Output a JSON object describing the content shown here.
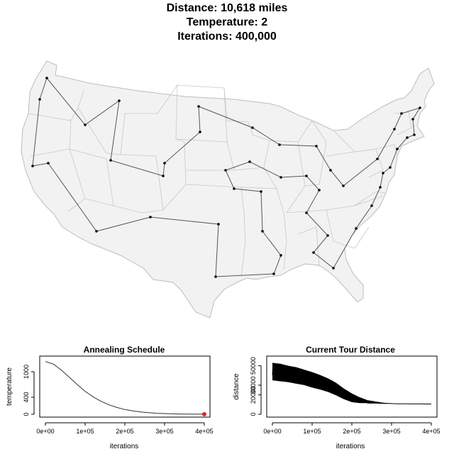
{
  "header": {
    "distance_line": "Distance: 10,618 miles",
    "temperature_line": "Temperature: 2",
    "iterations_line": "Iterations: 400,000"
  },
  "colors": {
    "map_fill": "#f2f2f2",
    "state_border": "#bdbdbd",
    "tour_line": "#555555",
    "city_point": "#000000",
    "current_marker": "#e3261c",
    "curve": "#333333"
  },
  "chart_data": [
    {
      "type": "line",
      "title": "Annealing Schedule",
      "xlabel": "iterations",
      "ylabel": "temperature",
      "x_ticks": [
        "0e+00",
        "1e+05",
        "2e+05",
        "3e+05",
        "4e+05"
      ],
      "y_ticks": [
        "0",
        "400",
        "1000"
      ],
      "xlim": [
        0,
        400000
      ],
      "ylim": [
        0,
        1300
      ],
      "grid": false,
      "series": [
        {
          "x": [
            0,
            20000,
            40000,
            60000,
            80000,
            100000,
            120000,
            140000,
            160000,
            180000,
            200000,
            220000,
            240000,
            260000,
            280000,
            300000,
            320000,
            340000,
            360000,
            380000,
            400000
          ],
          "values": [
            1240,
            1180,
            1040,
            870,
            700,
            540,
            410,
            305,
            222,
            160,
            112,
            78,
            54,
            36,
            24,
            16,
            10,
            6,
            4,
            3,
            2
          ]
        }
      ],
      "current_point": {
        "x": 400000,
        "y": 2
      }
    },
    {
      "type": "line",
      "title": "Current Tour Distance",
      "xlabel": "iterations",
      "ylabel": "distance",
      "x_ticks": [
        "0e+00",
        "1e+05",
        "2e+05",
        "3e+05",
        "4e+05"
      ],
      "y_ticks": [
        "0",
        "20000",
        "30000",
        "50000"
      ],
      "xlim": [
        0,
        400000
      ],
      "ylim": [
        0,
        57000
      ],
      "grid": false,
      "series": [
        {
          "x": [
            0,
            20000,
            40000,
            60000,
            80000,
            100000,
            120000,
            140000,
            160000,
            180000,
            200000,
            220000,
            240000,
            260000,
            280000,
            300000,
            320000,
            340000,
            360000,
            380000,
            400000
          ],
          "values": [
            44000,
            43000,
            41500,
            40000,
            38000,
            35500,
            33000,
            30000,
            26000,
            21000,
            17000,
            14500,
            13000,
            12000,
            11400,
            11000,
            10800,
            10700,
            10650,
            10630,
            10618
          ],
          "spread": [
            9000,
            9000,
            8500,
            8500,
            8000,
            8000,
            7500,
            7000,
            6500,
            5500,
            4500,
            3000,
            1500,
            800,
            400,
            0,
            0,
            0,
            0,
            0,
            0
          ]
        }
      ]
    }
  ]
}
